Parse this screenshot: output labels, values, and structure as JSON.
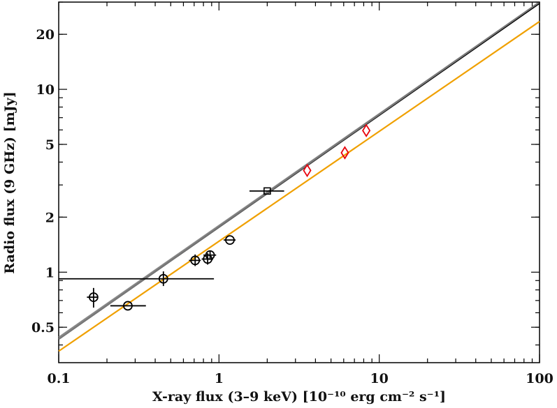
{
  "chart_data": {
    "type": "scatter",
    "title": "",
    "xlabel": "X-ray flux (3–9 keV) [10⁻¹⁰ erg cm⁻² s⁻¹]",
    "ylabel": "Radio flux (9 GHz) [mJy]",
    "xscale": "log",
    "yscale": "log",
    "xlim": [
      0.1,
      100
    ],
    "ylim": [
      0.32,
      30
    ],
    "grid": false,
    "legend": "none",
    "x_ticks": [
      {
        "value": 0.1,
        "label": "0.1"
      },
      {
        "value": 1,
        "label": "1"
      },
      {
        "value": 10,
        "label": "10"
      },
      {
        "value": 100,
        "label": "100"
      }
    ],
    "y_ticks": [
      {
        "value": 0.5,
        "label": "0.5"
      },
      {
        "value": 1,
        "label": "1"
      },
      {
        "value": 2,
        "label": "2"
      },
      {
        "value": 5,
        "label": "5"
      },
      {
        "value": 10,
        "label": "10"
      },
      {
        "value": 20,
        "label": "20"
      }
    ],
    "series": [
      {
        "marker": "circle",
        "color": "#000000",
        "points": [
          {
            "x": 0.165,
            "y": 0.73,
            "x_err": [
              0.15,
              0.175
            ],
            "y_err": [
              0.64,
              0.82
            ]
          },
          {
            "x": 0.27,
            "y": 0.655,
            "x_err": [
              0.21,
              0.35
            ],
            "y_err": [
              0.655,
              0.655
            ]
          },
          {
            "x": 0.45,
            "y": 0.92,
            "x_err": [
              0.0,
              0.93
            ],
            "y_err": [
              0.84,
              1.01
            ]
          },
          {
            "x": 0.71,
            "y": 1.16,
            "x_err": [
              0.65,
              0.77
            ],
            "y_err": [
              1.08,
              1.25
            ]
          },
          {
            "x": 0.85,
            "y": 1.18,
            "x_err": [
              0.78,
              0.92
            ],
            "y_err": [
              1.1,
              1.27
            ]
          },
          {
            "x": 0.88,
            "y": 1.24,
            "x_err": [
              0.8,
              0.96
            ],
            "y_err": [
              1.18,
              1.3
            ]
          },
          {
            "x": 1.17,
            "y": 1.5,
            "x_err": [
              1.07,
              1.27
            ],
            "y_err": [
              1.5,
              1.5
            ]
          }
        ]
      },
      {
        "marker": "square",
        "color": "#000000",
        "points": [
          {
            "x": 2.0,
            "y": 2.78,
            "x_err": [
              1.55,
              2.55
            ],
            "y_err": [
              2.78,
              2.78
            ]
          }
        ]
      },
      {
        "marker": "diamond",
        "color": "#e8000b",
        "points": [
          {
            "x": 3.55,
            "y": 3.6
          },
          {
            "x": 6.1,
            "y": 4.5
          },
          {
            "x": 8.3,
            "y": 5.95
          }
        ]
      }
    ],
    "fit_lines": [
      {
        "color": "#888888",
        "x": [
          0.1,
          100
        ],
        "y": [
          0.44,
          30
        ]
      },
      {
        "color": "#000000",
        "x": [
          0.1,
          100
        ],
        "y": [
          0.43,
          29.5
        ]
      },
      {
        "color": "#777777",
        "x": [
          0.1,
          100
        ],
        "y": [
          0.43,
          30
        ]
      },
      {
        "color": "#f0a000",
        "x": [
          0.1,
          100
        ],
        "y": [
          0.37,
          23.5
        ]
      }
    ]
  }
}
